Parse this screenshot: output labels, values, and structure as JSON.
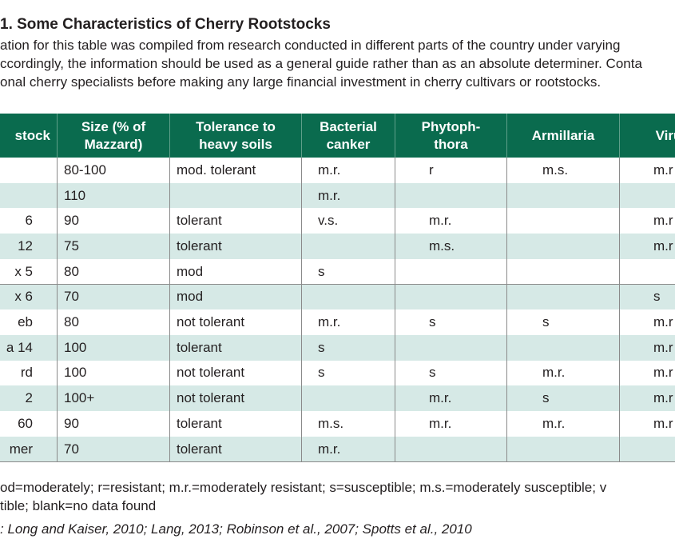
{
  "title": "1. Some Characteristics of Cherry Rootstocks",
  "intro": [
    "ation for this table was compiled from research conducted in different parts of the country under varying",
    "ccordingly, the information should be used as a general guide rather than as an absolute determiner. Conta",
    "onal cherry specialists before making any large financial investment in cherry cultivars or rootstocks."
  ],
  "table": {
    "header": [
      [
        "stock"
      ],
      [
        "Size (% of",
        "Mazzard)"
      ],
      [
        "Tolerance to",
        "heavy soils"
      ],
      [
        "Bacterial",
        "canker"
      ],
      [
        "Phytoph-",
        "thora"
      ],
      [
        "Armillaria"
      ],
      [
        "Viru"
      ]
    ],
    "rows": [
      [
        null,
        "80-100",
        "mod. tolerant",
        "m.r.",
        "r",
        "m.s.",
        "m.r"
      ],
      [
        null,
        "110",
        null,
        "m.r.",
        null,
        null,
        null
      ],
      [
        "6",
        "90",
        "tolerant",
        "v.s.",
        "m.r.",
        null,
        "m.r"
      ],
      [
        "12",
        "75",
        "tolerant",
        null,
        "m.s.",
        null,
        "m.r"
      ],
      [
        "x 5",
        "80",
        "mod",
        "s",
        null,
        null,
        null
      ],
      [
        "x 6",
        "70",
        "mod",
        null,
        null,
        null,
        "s"
      ],
      [
        "eb",
        "80",
        "not tolerant",
        "m.r.",
        "s",
        "s",
        "m.r"
      ],
      [
        "a 14",
        "100",
        "tolerant",
        "s",
        null,
        null,
        "m.r"
      ],
      [
        "rd",
        "100",
        "not tolerant",
        "s",
        "s",
        "m.r.",
        "m.r"
      ],
      [
        "2",
        "100+",
        "not tolerant",
        null,
        "m.r.",
        "s",
        "m.r"
      ],
      [
        "60",
        "90",
        "tolerant",
        "m.s.",
        "m.r.",
        "m.r.",
        "m.r"
      ],
      [
        "mer",
        "70",
        "tolerant",
        "m.r.",
        null,
        null,
        null
      ]
    ]
  },
  "footnotes": [
    "od=moderately; r=resistant; m.r.=moderately resistant; s=susceptible; m.s.=moderately susceptible; v",
    "tible; blank=no data found"
  ],
  "source": ": Long and Kaiser, 2010; Lang, 2013; Robinson et al., 2007; Spotts et al., 2010"
}
